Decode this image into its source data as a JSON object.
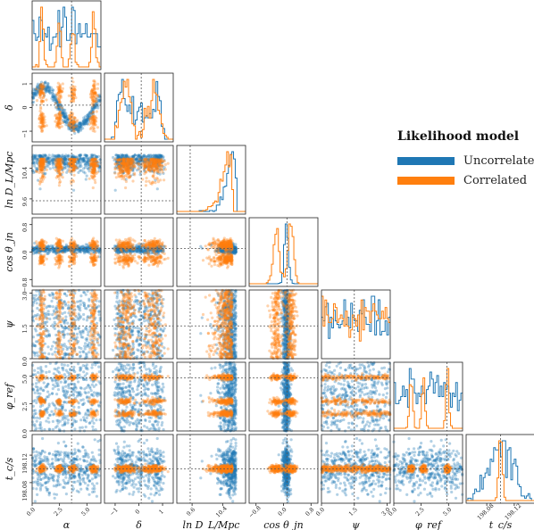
{
  "chart_data": {
    "type": "corner",
    "parameters": [
      {
        "key": "alpha",
        "label": "α",
        "range": [
          0,
          6.28
        ],
        "ticks": [
          "0.0",
          "2.5",
          "5.0"
        ],
        "tickvals": [
          0,
          2.5,
          5.0
        ],
        "truth": 3.6
      },
      {
        "key": "delta",
        "label": "δ",
        "range": [
          -1.45,
          1.45
        ],
        "ticks": [
          "−1",
          "0",
          "1"
        ],
        "tickvals": [
          -1,
          0,
          1
        ],
        "truth": 0.1
      },
      {
        "key": "lnDL",
        "label": "ln D_L/Mpc",
        "range": [
          9.2,
          11.0
        ],
        "ticks": [
          "9.6",
          "10.4"
        ],
        "tickvals": [
          9.6,
          10.4
        ],
        "truth": 9.55
      },
      {
        "key": "costheta",
        "label": "cos θ_jn",
        "range": [
          -1,
          1
        ],
        "ticks": [
          "−0.8",
          "0.0",
          "0.8"
        ],
        "tickvals": [
          -0.8,
          0,
          0.8
        ],
        "truth": 0.1
      },
      {
        "key": "psi",
        "label": "ψ",
        "range": [
          0,
          3.14
        ],
        "ticks": [
          "0.0",
          "1.5",
          "3.0"
        ],
        "tickvals": [
          0,
          1.5,
          3.0
        ],
        "truth": 1.5
      },
      {
        "key": "phiref",
        "label": "φ_ref",
        "range": [
          0,
          6.28
        ],
        "ticks": [
          "0.0",
          "2.5",
          "5.0"
        ],
        "tickvals": [
          0,
          2.5,
          5.0
        ],
        "truth": 4.85
      },
      {
        "key": "tc",
        "label": "t_c/s",
        "range": [
          198.05,
          198.15
        ],
        "ticks": [
          "198.08",
          "198.12"
        ],
        "tickvals": [
          198.08,
          198.12
        ],
        "truth": 198.1
      }
    ],
    "series": [
      {
        "name": "Uncorrelated",
        "color": "#1f77b4"
      },
      {
        "name": "Correlated",
        "color": "#ff7f0e"
      }
    ],
    "legend": {
      "title": "Likelihood model",
      "placement": "right"
    },
    "grid": false
  }
}
